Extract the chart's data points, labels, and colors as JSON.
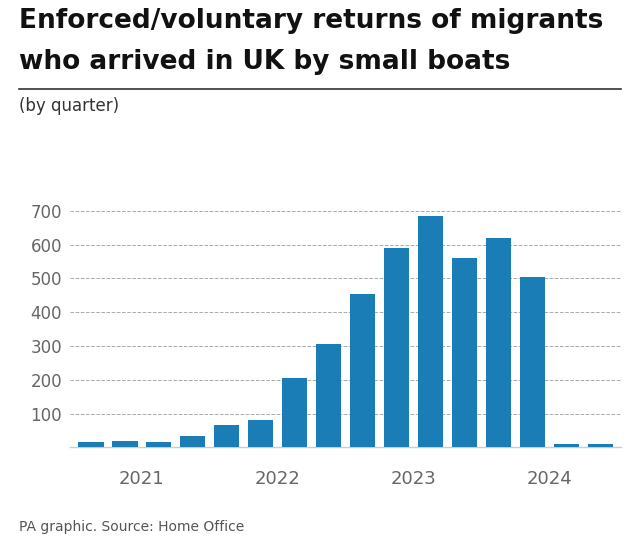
{
  "title_line1": "Enforced/voluntary returns of migrants",
  "title_line2": "who arrived in UK by small boats",
  "subtitle": "(by quarter)",
  "footer": "PA graphic. Source: Home Office",
  "bar_color": "#1a7db5",
  "background_color": "#ffffff",
  "values": [
    15,
    20,
    15,
    35,
    65,
    80,
    205,
    305,
    455,
    590,
    685,
    560,
    620,
    505,
    10,
    10
  ],
  "year_labels": [
    "2021",
    "2022",
    "2023",
    "2024"
  ],
  "ylim": [
    0,
    750
  ],
  "yticks": [
    100,
    200,
    300,
    400,
    500,
    600,
    700
  ],
  "title_fontsize": 19,
  "subtitle_fontsize": 12,
  "footer_fontsize": 10,
  "tick_fontsize": 12,
  "year_fontsize": 13,
  "grid_color": "#aaaaaa",
  "spine_color": "#cccccc",
  "text_color": "#111111",
  "tick_color": "#666666"
}
